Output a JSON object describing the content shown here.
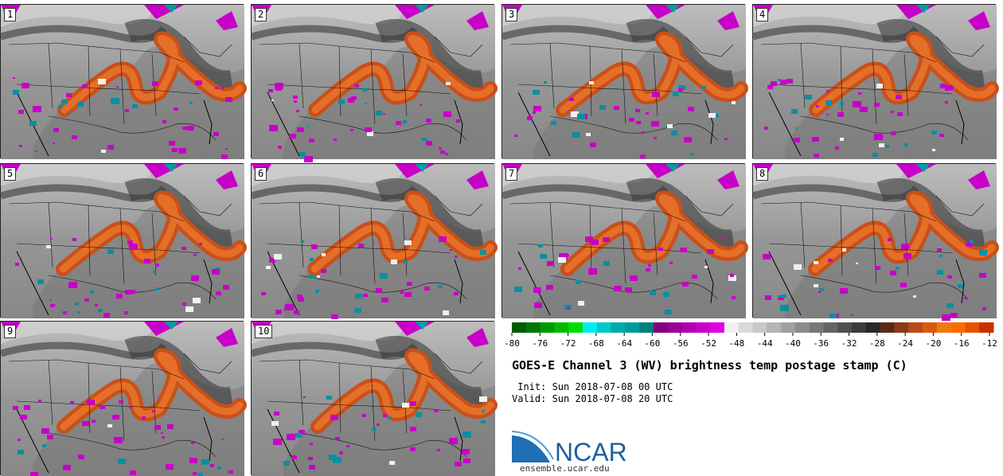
{
  "panels": [
    {
      "label": "1"
    },
    {
      "label": "2"
    },
    {
      "label": "3"
    },
    {
      "label": "4"
    },
    {
      "label": "5"
    },
    {
      "label": "6"
    },
    {
      "label": "7"
    },
    {
      "label": "8"
    },
    {
      "label": "9"
    },
    {
      "label": "10"
    }
  ],
  "colorbar": {
    "tick_labels": [
      "-80",
      "-76",
      "-72",
      "-68",
      "-64",
      "-60",
      "-56",
      "-52",
      "-48",
      "-44",
      "-40",
      "-36",
      "-32",
      "-28",
      "-24",
      "-20",
      "-16",
      "-12"
    ],
    "colors": [
      "#005a00",
      "#007800",
      "#009a00",
      "#00bb00",
      "#00dd00",
      "#00ecec",
      "#00c8c8",
      "#00aaaa",
      "#009999",
      "#007f7f",
      "#800080",
      "#990099",
      "#b000b0",
      "#c800c8",
      "#e000e0",
      "#f0f0f0",
      "#dadada",
      "#c8c8c8",
      "#b4b4b4",
      "#a0a0a0",
      "#8c8c8c",
      "#787878",
      "#646464",
      "#505050",
      "#3c3c3c",
      "#282828",
      "#5a2a14",
      "#8b3a1a",
      "#b84a1a",
      "#d85a10",
      "#f07a10",
      "#ff6a00",
      "#e85000",
      "#c83000"
    ]
  },
  "title": "GOES-E Channel 3 (WV) brightness temp postage stamp (C)",
  "init": " Init: Sun 2018-07-08 00 UTC",
  "valid": "Valid: Sun 2018-07-08 20 UTC",
  "logo_text": "NCAR",
  "site": "ensemble.ucar.edu",
  "colors": {
    "background_gray": "#8c8c8c",
    "moist_plume_orange": "#d4581e",
    "cold_cloud_magenta": "#c800c8",
    "ncar_blue": "#1e5fa0"
  }
}
